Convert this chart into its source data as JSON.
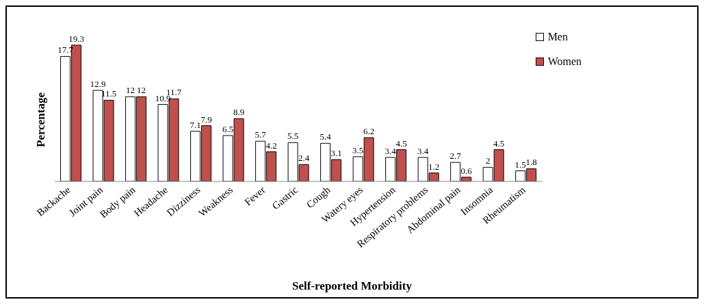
{
  "chart_data": {
    "type": "bar",
    "xlabel": "Self-reported Morbidity",
    "ylabel": "Percentage",
    "categories": [
      "Backache",
      "Joint pain",
      "Body pain",
      "Headache",
      "Dizziness",
      "Weakness",
      "Fever",
      "Gastric",
      "Cough",
      "Watery eyes",
      "Hypertension",
      "Respiratory problems",
      "Abdominal pain",
      "Insomnia",
      "Rheumatism"
    ],
    "series": [
      {
        "name": "Men",
        "color": "#ffffff",
        "values": [
          17.7,
          12.9,
          12,
          10.9,
          7.1,
          6.5,
          5.7,
          5.5,
          5.4,
          3.5,
          3.4,
          3.4,
          2.7,
          2,
          1.5
        ]
      },
      {
        "name": "Women",
        "color": "#c0504d",
        "values": [
          19.3,
          11.5,
          12,
          11.7,
          7.9,
          8.9,
          4.2,
          2.4,
          3.1,
          6.2,
          4.5,
          1.2,
          0.6,
          4.5,
          1.8
        ]
      }
    ],
    "data_labels": true,
    "grid": false,
    "legend": "top right"
  }
}
